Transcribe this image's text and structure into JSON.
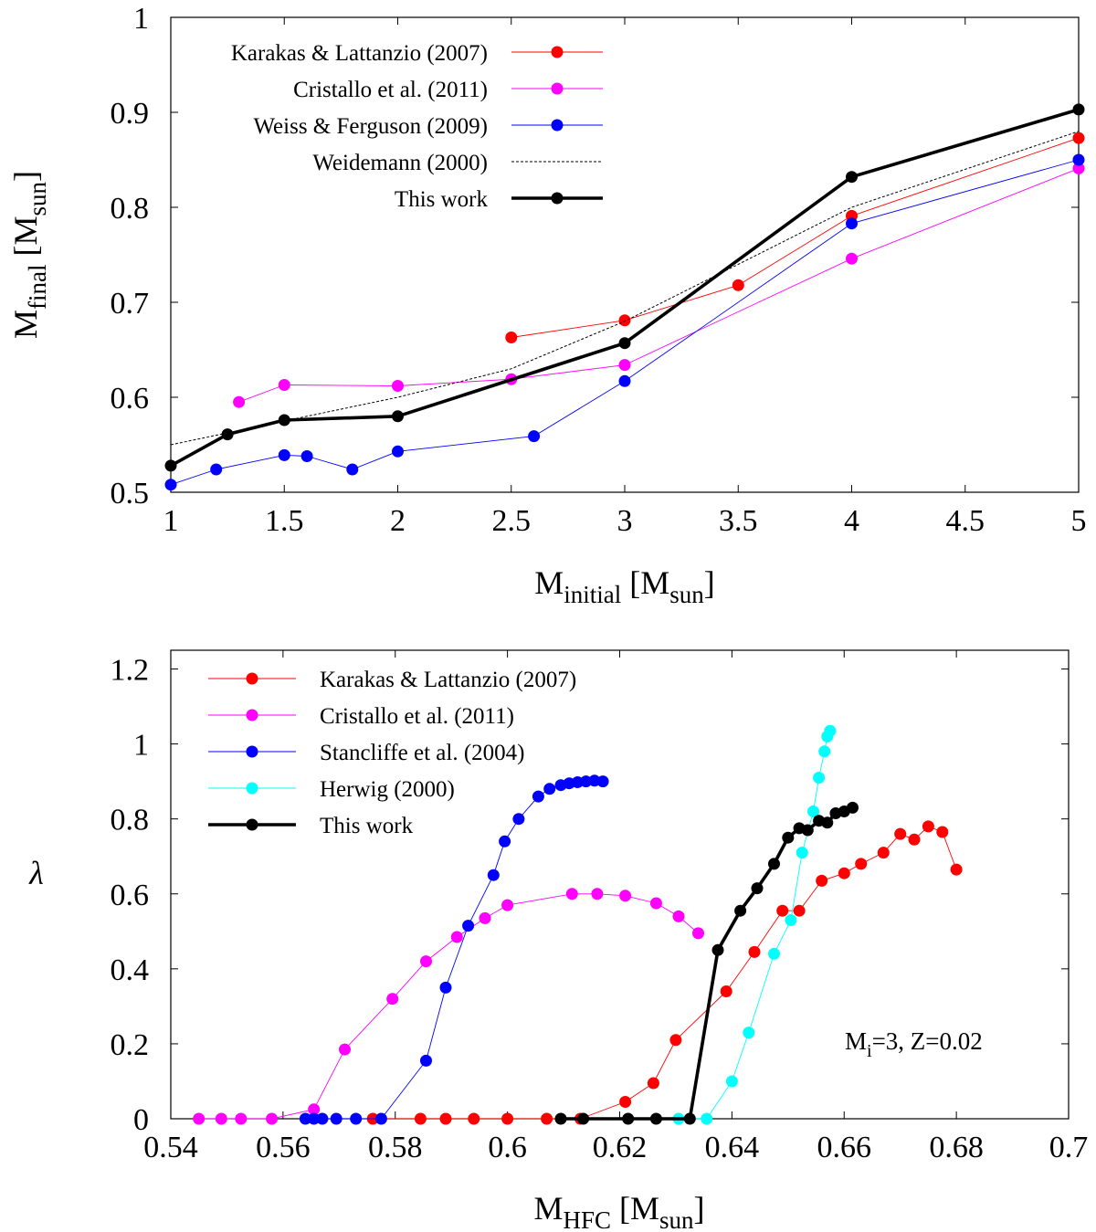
{
  "chart_data": [
    {
      "type": "line",
      "xlabel": {
        "main": "M",
        "sub": "initial",
        "unit_main": "[M",
        "unit_sub": "sun",
        "unit_close": "]"
      },
      "ylabel": {
        "main": "M",
        "sub": "final",
        "unit_main": "[M",
        "unit_sub": "sun",
        "unit_close": "]"
      },
      "xlim": [
        1,
        5
      ],
      "ylim": [
        0.5,
        1.0
      ],
      "xticks": [
        1,
        1.5,
        2,
        2.5,
        3,
        3.5,
        4,
        4.5,
        5
      ],
      "xtick_labels": [
        "1",
        "1.5",
        "2",
        "2.5",
        "3",
        "3.5",
        "4",
        "4.5",
        "5"
      ],
      "yticks": [
        0.5,
        0.6,
        0.7,
        0.8,
        0.9,
        1.0
      ],
      "ytick_labels": [
        "0.5",
        "0.6",
        "0.7",
        "0.8",
        "0.9",
        "1"
      ],
      "legend_position": "top-left",
      "series": [
        {
          "name": "Karakas & Lattanzio (2007)",
          "color": "#ff0000",
          "style": "thin",
          "markers": true,
          "segments": [
            [
              [
                2.5,
                0.663
              ],
              [
                3,
                0.681
              ],
              [
                3.5,
                0.718
              ],
              [
                4,
                0.791
              ],
              [
                5,
                0.873
              ]
            ]
          ]
        },
        {
          "name": "Cristallo et al. (2011)",
          "color": "#ff00ff",
          "style": "thin",
          "markers": true,
          "segments": [
            [
              [
                1.3,
                0.595
              ],
              [
                1.5,
                0.613
              ],
              [
                2,
                0.612
              ],
              [
                2.5,
                0.619
              ],
              [
                3,
                0.634
              ],
              [
                4,
                0.746
              ],
              [
                5,
                0.841
              ]
            ]
          ]
        },
        {
          "name": "Weiss & Ferguson (2009)",
          "color": "#0000ff",
          "style": "thin",
          "markers": true,
          "segments": [
            [
              [
                1,
                0.508
              ],
              [
                1.2,
                0.524
              ],
              [
                1.5,
                0.539
              ],
              [
                1.6,
                0.538
              ],
              [
                1.8,
                0.524
              ],
              [
                2,
                0.543
              ],
              [
                2.6,
                0.559
              ],
              [
                3,
                0.617
              ],
              [
                4,
                0.783
              ],
              [
                5,
                0.85
              ]
            ]
          ]
        },
        {
          "name": "Weidemann (2000)",
          "color": "#000000",
          "style": "dotted",
          "markers": false,
          "segments": [
            [
              [
                1,
                0.55
              ],
              [
                1.5,
                0.575
              ],
              [
                2,
                0.6
              ],
              [
                2.5,
                0.63
              ],
              [
                3,
                0.68
              ],
              [
                3.5,
                0.74
              ],
              [
                4,
                0.8
              ],
              [
                5,
                0.88
              ]
            ]
          ]
        },
        {
          "name": "This work",
          "color": "#000000",
          "style": "thick",
          "markers": true,
          "segments": [
            [
              [
                1,
                0.528
              ],
              [
                1.25,
                0.561
              ],
              [
                1.5,
                0.576
              ],
              [
                2,
                0.58
              ],
              [
                3,
                0.657
              ],
              [
                4,
                0.832
              ],
              [
                5,
                0.903
              ]
            ]
          ]
        }
      ]
    },
    {
      "type": "line",
      "xlabel": {
        "main": "M",
        "sub": "HFC",
        "unit_main": "[M",
        "unit_sub": "sun",
        "unit_close": "]"
      },
      "ylabel": {
        "main": "λ"
      },
      "xlim": [
        0.54,
        0.7
      ],
      "ylim": [
        0,
        1.25
      ],
      "xticks": [
        0.54,
        0.56,
        0.58,
        0.6,
        0.62,
        0.64,
        0.66,
        0.68,
        0.7
      ],
      "xtick_labels": [
        "0.54",
        "0.56",
        "0.58",
        "0.6",
        "0.62",
        "0.64",
        "0.66",
        "0.68",
        "0.7"
      ],
      "yticks": [
        0,
        0.2,
        0.4,
        0.6,
        0.8,
        1.0,
        1.2
      ],
      "ytick_labels": [
        "0",
        "0.2",
        "0.4",
        "0.6",
        "0.8",
        "1",
        "1.2"
      ],
      "legend_position": "top-left",
      "annotation": {
        "main": "M",
        "sub": "i",
        "rest": "=3, Z=0.02"
      },
      "series": [
        {
          "name": "Karakas & Lattanzio (2007)",
          "color": "#ff0000",
          "style": "thin",
          "markers": true,
          "segments": [
            [
              [
                0.576,
                0
              ],
              [
                0.5845,
                0
              ],
              [
                0.589,
                0
              ],
              [
                0.594,
                0
              ],
              [
                0.6,
                0
              ],
              [
                0.607,
                0
              ],
              [
                0.613,
                0
              ],
              [
                0.621,
                0.045
              ],
              [
                0.626,
                0.095
              ],
              [
                0.63,
                0.21
              ],
              [
                0.639,
                0.34
              ],
              [
                0.644,
                0.445
              ],
              [
                0.649,
                0.555
              ],
              [
                0.652,
                0.555
              ],
              [
                0.656,
                0.635
              ],
              [
                0.66,
                0.655
              ],
              [
                0.663,
                0.68
              ],
              [
                0.667,
                0.71
              ],
              [
                0.67,
                0.76
              ],
              [
                0.6725,
                0.745
              ],
              [
                0.675,
                0.78
              ],
              [
                0.6775,
                0.765
              ],
              [
                0.68,
                0.665
              ]
            ]
          ]
        },
        {
          "name": "Cristallo et al. (2011)",
          "color": "#ff00ff",
          "style": "thin",
          "markers": true,
          "segments": [
            [
              [
                0.545,
                0
              ],
              [
                0.549,
                0
              ],
              [
                0.5525,
                0
              ],
              [
                0.558,
                0
              ],
              [
                0.5655,
                0.025
              ],
              [
                0.571,
                0.185
              ],
              [
                0.5795,
                0.32
              ],
              [
                0.5855,
                0.42
              ],
              [
                0.591,
                0.485
              ],
              [
                0.596,
                0.535
              ],
              [
                0.6,
                0.57
              ],
              [
                0.6115,
                0.6
              ],
              [
                0.616,
                0.6
              ],
              [
                0.621,
                0.595
              ],
              [
                0.6265,
                0.575
              ],
              [
                0.6305,
                0.54
              ],
              [
                0.634,
                0.495
              ]
            ]
          ]
        },
        {
          "name": "Stancliffe et al. (2004)",
          "color": "#0000ff",
          "style": "thin",
          "markers": true,
          "segments": [
            [
              [
                0.564,
                0
              ],
              [
                0.5655,
                0
              ],
              [
                0.567,
                0
              ],
              [
                0.5695,
                0
              ],
              [
                0.573,
                0
              ],
              [
                0.5775,
                0
              ],
              [
                0.5855,
                0.155
              ],
              [
                0.589,
                0.35
              ],
              [
                0.593,
                0.515
              ],
              [
                0.5975,
                0.65
              ],
              [
                0.5995,
                0.74
              ],
              [
                0.602,
                0.8
              ],
              [
                0.6055,
                0.86
              ],
              [
                0.6075,
                0.88
              ],
              [
                0.6095,
                0.89
              ],
              [
                0.611,
                0.895
              ],
              [
                0.6125,
                0.898
              ],
              [
                0.614,
                0.9
              ],
              [
                0.6155,
                0.902
              ],
              [
                0.617,
                0.9
              ]
            ]
          ]
        },
        {
          "name": "Herwig (2000)",
          "color": "#00ffff",
          "style": "thin",
          "markers": true,
          "segments": [
            [
              [
                0.6305,
                0
              ],
              [
                0.6355,
                0
              ],
              [
                0.64,
                0.1
              ],
              [
                0.643,
                0.23
              ],
              [
                0.6475,
                0.44
              ],
              [
                0.6505,
                0.53
              ],
              [
                0.6525,
                0.71
              ],
              [
                0.6545,
                0.82
              ],
              [
                0.6555,
                0.91
              ],
              [
                0.6565,
                0.98
              ],
              [
                0.657,
                1.02
              ],
              [
                0.6575,
                1.035
              ]
            ]
          ]
        },
        {
          "name": "This work",
          "color": "#000000",
          "style": "thick",
          "markers": true,
          "segments": [
            [
              [
                0.6095,
                0
              ],
              [
                0.6135,
                0
              ],
              [
                0.6215,
                0
              ],
              [
                0.6265,
                0
              ],
              [
                0.6325,
                0
              ],
              [
                0.6375,
                0.45
              ],
              [
                0.6415,
                0.555
              ],
              [
                0.6445,
                0.615
              ],
              [
                0.6475,
                0.68
              ],
              [
                0.65,
                0.75
              ],
              [
                0.652,
                0.775
              ],
              [
                0.6535,
                0.77
              ],
              [
                0.6555,
                0.795
              ],
              [
                0.657,
                0.79
              ],
              [
                0.6585,
                0.815
              ],
              [
                0.66,
                0.82
              ],
              [
                0.6615,
                0.83
              ]
            ]
          ]
        }
      ]
    }
  ]
}
